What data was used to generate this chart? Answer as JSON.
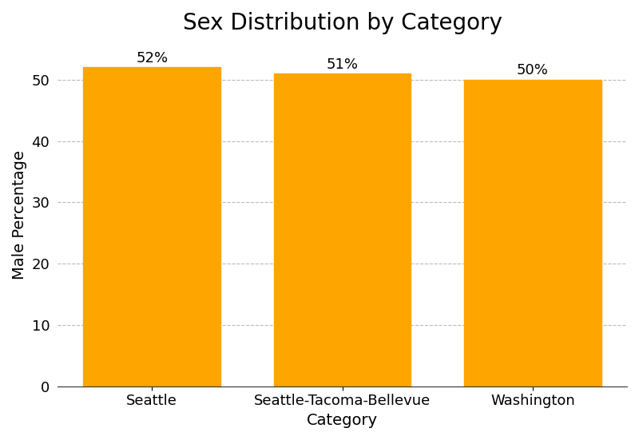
{
  "title": "Sex Distribution by Category",
  "categories": [
    "Seattle",
    "Seattle-Tacoma-Bellevue",
    "Washington"
  ],
  "values": [
    52,
    51,
    50
  ],
  "labels": [
    "52%",
    "51%",
    "50%"
  ],
  "bar_color": "#FFA500",
  "bar_edgecolor": "#FFA500",
  "xlabel": "Category",
  "ylabel": "Male Percentage",
  "ylim": [
    0,
    56
  ],
  "yticks": [
    0,
    10,
    20,
    30,
    40,
    50
  ],
  "grid_color": "#BBBBBB",
  "grid_linestyle": "--",
  "title_fontsize": 20,
  "label_fontsize": 14,
  "tick_fontsize": 13,
  "annotation_fontsize": 13,
  "bar_width": 0.72,
  "background_color": "#ffffff"
}
